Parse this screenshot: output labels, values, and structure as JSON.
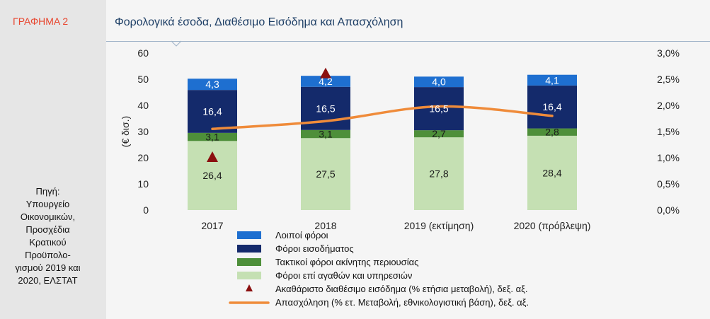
{
  "figure_label": "ΓΡΑΦΗΜΑ 2",
  "source_lines": [
    "Πηγή:",
    "Υπουργείο",
    "Οικονομικών,",
    "Προσχέδια",
    "Κρατικού",
    "Προϋπολο-",
    "γισμού 2019 και",
    "2020, ΕΛΣΤΑΤ"
  ],
  "colors": {
    "figure_label": "#e8452e",
    "title": "#1e3f66",
    "other_taxes": "#1e6fd0",
    "income_taxes": "#142a6b",
    "property_taxes": "#4e8f3a",
    "goods_services_taxes": "#c5e0b3",
    "disposable_income_marker": "#8b0f0f",
    "employment_line": "#ef8b3a"
  },
  "chart_data": {
    "type": "bar",
    "stacked": true,
    "title": "Φορολογικά έσοδα, Διαθέσιμο Εισόδημα και Απασχόληση",
    "ylabel": "(€ δισ.)",
    "ylim": [
      0,
      60
    ],
    "y_ticks": [
      "0",
      "10",
      "20",
      "30",
      "40",
      "50",
      "60"
    ],
    "y2lim": [
      0,
      3.0
    ],
    "y2_ticks": [
      "0,0%",
      "0,5%",
      "1,0%",
      "1,5%",
      "2,0%",
      "2,5%",
      "3,0%"
    ],
    "categories": [
      "2017",
      "2018",
      "2019 (εκτίμηση)",
      "2020 (πρόβλεψη)"
    ],
    "series": [
      {
        "name": "Φόροι επί αγαθών και υπηρεσιών",
        "key": "goods_services_taxes",
        "values": [
          26.4,
          27.5,
          27.8,
          28.4
        ],
        "labels": [
          "26,4",
          "27,5",
          "27,8",
          "28,4"
        ]
      },
      {
        "name": "Τακτικοί φόροι ακίνητης περιουσίας",
        "key": "property_taxes",
        "values": [
          3.1,
          3.1,
          2.7,
          2.8
        ],
        "labels": [
          "3,1",
          "3,1",
          "2,7",
          "2,8"
        ]
      },
      {
        "name": "Φόροι εισοδήματος",
        "key": "income_taxes",
        "values": [
          16.4,
          16.5,
          16.5,
          16.4
        ],
        "labels": [
          "16,4",
          "16,5",
          "16,5",
          "16,4"
        ]
      },
      {
        "name": "Λοιποί φόροι",
        "key": "other_taxes",
        "values": [
          4.3,
          4.2,
          4.0,
          4.1
        ],
        "labels": [
          "4,3",
          "4,2",
          "4,0",
          "4,1"
        ]
      }
    ],
    "markers": {
      "name": "Ακαθάριστο διαθέσιμο εισόδημα (% ετήσια μεταβολή), δεξ. αξ.",
      "axis": "right",
      "values": [
        1.0,
        2.6,
        null,
        null
      ]
    },
    "line": {
      "name": "Απασχόληση  (% ετ. Μεταβολή,  εθνικολογιστική βάση), δεξ.  αξ.",
      "axis": "right",
      "values": [
        1.55,
        1.7,
        1.98,
        1.8
      ]
    },
    "legend": [
      {
        "label": "Λοιποί φόροι",
        "key": "other_taxes",
        "kind": "box"
      },
      {
        "label": "Φόροι εισοδήματος",
        "key": "income_taxes",
        "kind": "box"
      },
      {
        "label": "Τακτικοί φόροι ακίνητης περιουσίας",
        "key": "property_taxes",
        "kind": "box"
      },
      {
        "label": "Φόροι επί αγαθών  και υπηρεσιών",
        "key": "goods_services_taxes",
        "kind": "box"
      },
      {
        "label": "Ακαθάριστο διαθέσιμο εισόδημα (% ετήσια μεταβολή), δεξ. αξ.",
        "key": "disposable_income_marker",
        "kind": "triangle"
      },
      {
        "label": "Απασχόληση  (% ετ. Μεταβολή,  εθνικολογιστική βάση), δεξ.  αξ.",
        "key": "employment_line",
        "kind": "line"
      }
    ],
    "legend_position": "bottom-center"
  }
}
